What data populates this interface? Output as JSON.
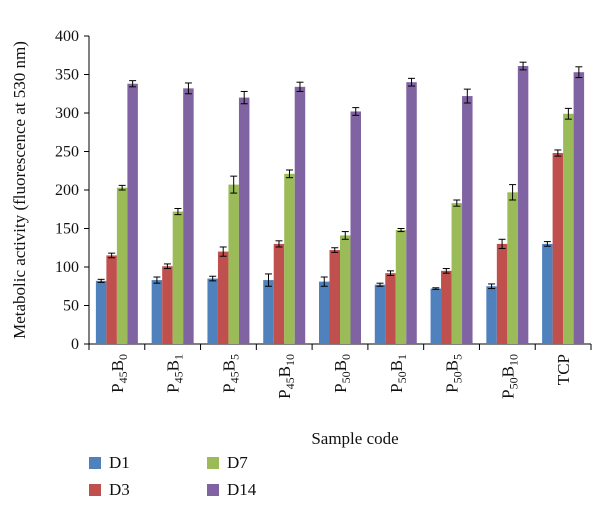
{
  "chart_data": {
    "type": "bar",
    "xlabel": "Sample code",
    "ylabel": "Metabolic activity (fluorescence at 530 nm)",
    "ylim": [
      0,
      400
    ],
    "yticks": [
      0,
      50,
      100,
      150,
      200,
      250,
      300,
      350,
      400
    ],
    "grid": false,
    "legend_position": "bottom-left",
    "categories": [
      {
        "base": "P",
        "sub1": "45",
        "mid": "B",
        "sub2": "0"
      },
      {
        "base": "P",
        "sub1": "45",
        "mid": "B",
        "sub2": "1"
      },
      {
        "base": "P",
        "sub1": "45",
        "mid": "B",
        "sub2": "5"
      },
      {
        "base": "P",
        "sub1": "45",
        "mid": "B",
        "sub2": "10"
      },
      {
        "base": "P",
        "sub1": "50",
        "mid": "B",
        "sub2": "0"
      },
      {
        "base": "P",
        "sub1": "50",
        "mid": "B",
        "sub2": "1"
      },
      {
        "base": "P",
        "sub1": "50",
        "mid": "B",
        "sub2": "5"
      },
      {
        "base": "P",
        "sub1": "50",
        "mid": "B",
        "sub2": "10"
      },
      {
        "base": "TCP",
        "sub1": "",
        "mid": "",
        "sub2": ""
      }
    ],
    "series": [
      {
        "name": "D1",
        "color": "#4f81bd",
        "values": [
          82,
          83,
          85,
          83,
          81,
          77,
          72,
          75,
          130
        ],
        "errors": [
          2,
          4,
          3,
          8,
          6,
          2,
          1,
          3,
          3
        ]
      },
      {
        "name": "D3",
        "color": "#c0504d",
        "values": [
          115,
          101,
          120,
          130,
          122,
          92,
          95,
          130,
          248
        ],
        "errors": [
          3,
          3,
          6,
          4,
          3,
          3,
          3,
          6,
          4
        ]
      },
      {
        "name": "D7",
        "color": "#9bbb59",
        "values": [
          203,
          172,
          207,
          221,
          141,
          148,
          183,
          197,
          299
        ],
        "errors": [
          3,
          4,
          11,
          5,
          5,
          2,
          4,
          10,
          7
        ]
      },
      {
        "name": "D14",
        "color": "#8064a2",
        "values": [
          338,
          332,
          320,
          334,
          302,
          340,
          322,
          361,
          353
        ],
        "errors": [
          4,
          7,
          8,
          6,
          5,
          5,
          9,
          5,
          7
        ]
      }
    ]
  }
}
